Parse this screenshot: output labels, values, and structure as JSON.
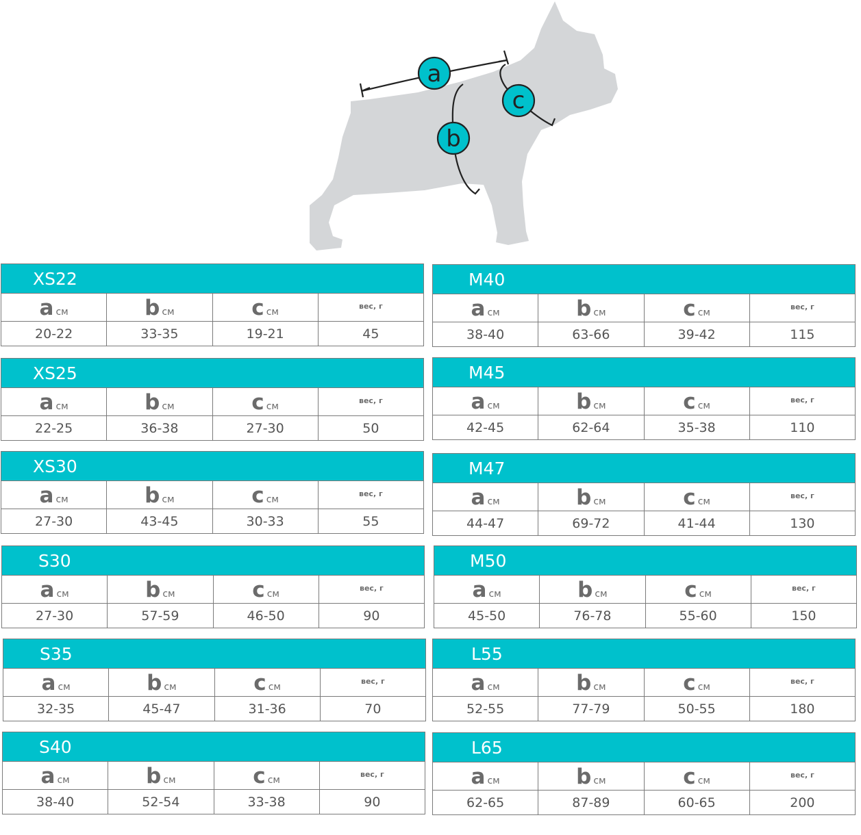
{
  "diagram": {
    "labels": {
      "a": "a",
      "b": "b",
      "c": "c"
    }
  },
  "columns": {
    "a": "a",
    "b": "b",
    "c": "c",
    "unit": "см",
    "weight": "вес, г"
  },
  "sizes_left": [
    {
      "name": "XS22",
      "a": "20-22",
      "b": "33-35",
      "c": "19-21",
      "weight": "45"
    },
    {
      "name": "XS25",
      "a": "22-25",
      "b": "36-38",
      "c": "27-30",
      "weight": "50"
    },
    {
      "name": "XS30",
      "a": "27-30",
      "b": "43-45",
      "c": "30-33",
      "weight": "55"
    },
    {
      "name": "S30",
      "a": "27-30",
      "b": "57-59",
      "c": "46-50",
      "weight": "90"
    },
    {
      "name": "S35",
      "a": "32-35",
      "b": "45-47",
      "c": "31-36",
      "weight": "70"
    },
    {
      "name": "S40",
      "a": "38-40",
      "b": "52-54",
      "c": "33-38",
      "weight": "90"
    }
  ],
  "sizes_right": [
    {
      "name": "M40",
      "a": "38-40",
      "b": "63-66",
      "c": "39-42",
      "weight": "115"
    },
    {
      "name": "M45",
      "a": "42-45",
      "b": "62-64",
      "c": "35-38",
      "weight": "110"
    },
    {
      "name": "M47",
      "a": "44-47",
      "b": "69-72",
      "c": "41-44",
      "weight": "130"
    },
    {
      "name": "M50",
      "a": "45-50",
      "b": "76-78",
      "c": "55-60",
      "weight": "150"
    },
    {
      "name": "L55",
      "a": "52-55",
      "b": "77-79",
      "c": "50-55",
      "weight": "180"
    },
    {
      "name": "L65",
      "a": "62-65",
      "b": "87-89",
      "c": "60-65",
      "weight": "200"
    }
  ]
}
